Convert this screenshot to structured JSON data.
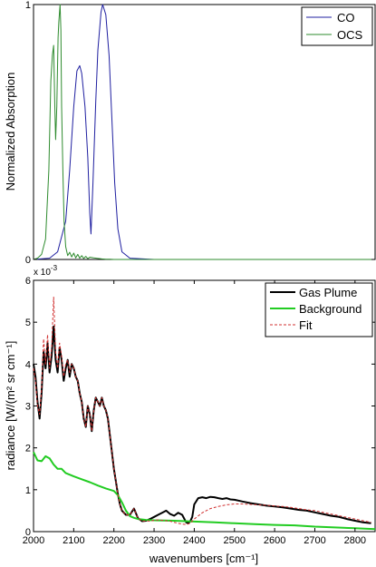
{
  "chart_data": [
    {
      "type": "line",
      "xlim": [
        2000,
        2850
      ],
      "ylim": [
        0,
        1
      ],
      "ylabel": "Normalized Absorption",
      "yticks": [
        0,
        1
      ],
      "ytick_labels": [
        "0",
        "1"
      ],
      "grid": false,
      "legend_position": "top-right",
      "series": [
        {
          "name": "CO",
          "color": "#1f1fa0",
          "x": [
            2000,
            2040,
            2060,
            2080,
            2090,
            2100,
            2108,
            2115,
            2120,
            2128,
            2135,
            2140,
            2143,
            2148,
            2155,
            2160,
            2168,
            2172,
            2180,
            2188,
            2195,
            2202,
            2210,
            2220,
            2240,
            2300,
            2850
          ],
          "y": [
            0,
            0.005,
            0.03,
            0.15,
            0.35,
            0.6,
            0.74,
            0.76,
            0.73,
            0.6,
            0.4,
            0.18,
            0.1,
            0.3,
            0.62,
            0.82,
            0.97,
            1.0,
            0.96,
            0.8,
            0.55,
            0.3,
            0.12,
            0.03,
            0.005,
            0,
            0
          ]
        },
        {
          "name": "OCS",
          "color": "#2e8b2e",
          "x": [
            2000,
            2010,
            2020,
            2030,
            2038,
            2043,
            2047,
            2050,
            2053,
            2055,
            2058,
            2061,
            2063,
            2066,
            2068,
            2070,
            2073,
            2076,
            2080,
            2085,
            2090,
            2095,
            2100,
            2105,
            2110,
            2115,
            2120,
            2125,
            2130,
            2135,
            2140,
            2150,
            2160,
            2170,
            2180,
            2190,
            2200,
            2850
          ],
          "y": [
            0,
            0.005,
            0.02,
            0.08,
            0.35,
            0.7,
            0.8,
            0.84,
            0.6,
            0.47,
            0.6,
            0.87,
            0.93,
            1.0,
            0.9,
            0.6,
            0.35,
            0.15,
            0.05,
            0.015,
            0.028,
            0.01,
            0.025,
            0.006,
            0.02,
            0.005,
            0.015,
            0.004,
            0.012,
            0.003,
            0.009,
            0.006,
            0.004,
            0.002,
            0.001,
            0.001,
            0,
            0
          ]
        }
      ]
    },
    {
      "type": "line",
      "xlim": [
        2000,
        2850
      ],
      "ylim": [
        0,
        0.006
      ],
      "ylabel": "radiance [W/(m² sr cm⁻¹]",
      "xlabel": "wavenumbers [cm⁻¹]",
      "exponent_label": "x 10",
      "exponent_power": "-3",
      "xticks": [
        2000,
        2100,
        2200,
        2300,
        2400,
        2500,
        2600,
        2700,
        2800
      ],
      "xtick_labels": [
        "2000",
        "2100",
        "2200",
        "2300",
        "2400",
        "2500",
        "2600",
        "2700",
        "2800"
      ],
      "yticks": [
        0,
        0.001,
        0.002,
        0.003,
        0.004,
        0.005,
        0.006
      ],
      "ytick_labels": [
        "0",
        "1",
        "2",
        "3",
        "4",
        "5",
        "6"
      ],
      "grid": false,
      "legend_position": "top-right",
      "series": [
        {
          "name": "Gas Plume",
          "color": "#000000",
          "style": "solid-thick",
          "x": [
            2000,
            2005,
            2010,
            2015,
            2020,
            2025,
            2030,
            2035,
            2040,
            2045,
            2050,
            2055,
            2060,
            2065,
            2070,
            2075,
            2080,
            2085,
            2090,
            2095,
            2100,
            2105,
            2110,
            2115,
            2120,
            2125,
            2130,
            2135,
            2140,
            2145,
            2150,
            2155,
            2160,
            2165,
            2170,
            2175,
            2180,
            2185,
            2190,
            2195,
            2200,
            2205,
            2210,
            2215,
            2220,
            2230,
            2240,
            2250,
            2260,
            2270,
            2280,
            2290,
            2300,
            2310,
            2320,
            2330,
            2340,
            2350,
            2360,
            2370,
            2380,
            2385,
            2390,
            2395,
            2400,
            2410,
            2420,
            2430,
            2440,
            2450,
            2460,
            2470,
            2480,
            2490,
            2500,
            2510,
            2520,
            2530,
            2540,
            2560,
            2580,
            2600,
            2620,
            2640,
            2660,
            2680,
            2700,
            2720,
            2740,
            2760,
            2780,
            2800,
            2820,
            2840
          ],
          "y": [
            0.004,
            0.0037,
            0.0031,
            0.0027,
            0.0033,
            0.0043,
            0.0039,
            0.0045,
            0.0038,
            0.0042,
            0.0049,
            0.0041,
            0.0038,
            0.0044,
            0.0041,
            0.0036,
            0.0039,
            0.0041,
            0.0037,
            0.004,
            0.0039,
            0.0037,
            0.0036,
            0.0033,
            0.0031,
            0.0027,
            0.0025,
            0.003,
            0.0028,
            0.0024,
            0.0029,
            0.0032,
            0.0031,
            0.003,
            0.0032,
            0.003,
            0.0029,
            0.0027,
            0.0023,
            0.0019,
            0.0015,
            0.0012,
            0.0009,
            0.00065,
            0.0005,
            0.0004,
            0.0004,
            0.00055,
            0.00032,
            0.00025,
            0.00026,
            0.0003,
            0.00035,
            0.0004,
            0.00045,
            0.0005,
            0.00042,
            0.00038,
            0.00045,
            0.0004,
            0.00022,
            0.0002,
            0.00025,
            0.00035,
            0.00065,
            0.0008,
            0.00082,
            0.0008,
            0.00083,
            0.00082,
            0.0008,
            0.00078,
            0.0008,
            0.00077,
            0.00076,
            0.00074,
            0.00072,
            0.0007,
            0.00068,
            0.00065,
            0.00062,
            0.0006,
            0.00058,
            0.00055,
            0.00052,
            0.0005,
            0.00046,
            0.00042,
            0.00038,
            0.00035,
            0.0003,
            0.00026,
            0.00022,
            0.0002
          ]
        },
        {
          "name": "Background",
          "color": "#22cc22",
          "style": "solid-thick",
          "x": [
            2000,
            2010,
            2020,
            2030,
            2040,
            2050,
            2060,
            2070,
            2080,
            2100,
            2120,
            2140,
            2160,
            2180,
            2200,
            2210,
            2220,
            2230,
            2240,
            2250,
            2260,
            2280,
            2300,
            2350,
            2400,
            2450,
            2500,
            2550,
            2600,
            2650,
            2700,
            2750,
            2800,
            2850
          ],
          "y": [
            0.0019,
            0.0017,
            0.00168,
            0.0018,
            0.00175,
            0.0016,
            0.0015,
            0.0015,
            0.0014,
            0.00132,
            0.00125,
            0.00118,
            0.0011,
            0.00103,
            0.00097,
            0.00087,
            0.0007,
            0.0005,
            0.00037,
            0.00033,
            0.0003,
            0.00028,
            0.00027,
            0.00026,
            0.00024,
            0.00022,
            0.0002,
            0.00018,
            0.00016,
            0.00015,
            0.00012,
            0.0001,
            8e-05,
            6e-05
          ]
        },
        {
          "name": "Fit",
          "color": "#d03030",
          "style": "dashed",
          "x": [
            2000,
            2005,
            2010,
            2015,
            2020,
            2025,
            2030,
            2035,
            2040,
            2045,
            2050,
            2055,
            2060,
            2065,
            2070,
            2075,
            2080,
            2085,
            2090,
            2095,
            2100,
            2105,
            2110,
            2115,
            2120,
            2125,
            2130,
            2135,
            2140,
            2145,
            2150,
            2155,
            2160,
            2165,
            2170,
            2175,
            2180,
            2185,
            2190,
            2195,
            2200,
            2205,
            2210,
            2215,
            2220,
            2230,
            2240,
            2250,
            2260,
            2270,
            2280,
            2290,
            2300,
            2310,
            2320,
            2330,
            2340,
            2350,
            2360,
            2370,
            2380,
            2390,
            2400,
            2420,
            2440,
            2460,
            2480,
            2500,
            2520,
            2540,
            2560,
            2580,
            2600,
            2620,
            2640,
            2660,
            2680,
            2700,
            2720,
            2740,
            2760,
            2780,
            2800,
            2820,
            2840
          ],
          "y": [
            0.0039,
            0.0036,
            0.003,
            0.0028,
            0.0034,
            0.0046,
            0.004,
            0.0047,
            0.0039,
            0.0044,
            0.0056,
            0.0043,
            0.0039,
            0.0045,
            0.0042,
            0.0037,
            0.004,
            0.0041,
            0.0038,
            0.004,
            0.0039,
            0.0037,
            0.0036,
            0.0033,
            0.0031,
            0.0027,
            0.0025,
            0.003,
            0.0028,
            0.0024,
            0.0029,
            0.0032,
            0.0031,
            0.003,
            0.0032,
            0.003,
            0.0029,
            0.0027,
            0.0023,
            0.0019,
            0.0015,
            0.0012,
            0.0009,
            0.00065,
            0.0005,
            0.0004,
            0.0004,
            0.00055,
            0.00032,
            0.00025,
            0.00026,
            0.00025,
            0.00027,
            0.00028,
            0.00027,
            0.00026,
            0.00025,
            0.00022,
            0.0002,
            0.00018,
            0.00017,
            0.0002,
            0.0003,
            0.00045,
            0.00055,
            0.0006,
            0.00064,
            0.00066,
            0.00066,
            0.00065,
            0.00064,
            0.00063,
            0.00061,
            0.0006,
            0.00058,
            0.00055,
            0.00052,
            0.0005,
            0.00046,
            0.00042,
            0.00038,
            0.00034,
            0.0003,
            0.00026,
            0.00022
          ]
        }
      ]
    }
  ]
}
